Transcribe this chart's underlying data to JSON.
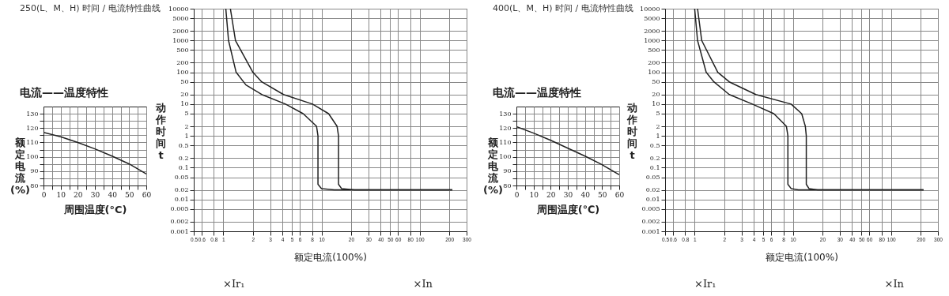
{
  "chart_data": [
    {
      "type": "line",
      "title": "250(L、M、H) 时间 / 电流特性曲线",
      "subtitle": "电流——温度特性",
      "xlabel": "周围温度(°C)",
      "ylabel": "额定电流(%)",
      "x": [
        0,
        10,
        20,
        30,
        40,
        50,
        60
      ],
      "xlim": [
        0,
        60
      ],
      "ylim": [
        80,
        135
      ],
      "xticks": [
        0,
        {
          "value": 5,
          "label": null
        },
        10,
        {
          "value": 15,
          "label": null
        },
        20,
        {
          "value": 25,
          "label": null
        },
        30,
        {
          "value": 35,
          "label": null
        },
        40,
        {
          "value": 45,
          "label": null
        },
        50,
        {
          "value": 55,
          "label": null
        },
        60
      ],
      "yticks": [
        80,
        {
          "value": 85,
          "label": null
        },
        90,
        {
          "value": 95,
          "label": null
        },
        100,
        {
          "value": 105,
          "label": null
        },
        110,
        {
          "value": 115,
          "label": null
        },
        120,
        {
          "value": 125,
          "label": null
        },
        130
      ],
      "grid": true,
      "series": [
        {
          "color": "#222222",
          "values": [
            117,
            114,
            110,
            105.5,
            100.5,
            95,
            88
          ]
        }
      ]
    },
    {
      "type": "line",
      "xlabel": "额定电流(100%)",
      "ylabel": "动作时间t",
      "log": "xy",
      "xlim": [
        0.5,
        300
      ],
      "ylim": [
        0.001,
        10000
      ],
      "xticks": [
        0.5,
        0.6,
        0.8,
        1,
        2,
        3,
        4,
        5,
        6,
        8,
        10,
        20,
        30,
        40,
        50,
        60,
        80,
        100,
        200,
        300
      ],
      "yticks": [
        0.001,
        0.002,
        0.005,
        0.01,
        0.02,
        0.05,
        0.1,
        0.2,
        0.5,
        1,
        2,
        5,
        10,
        20,
        50,
        100,
        200,
        500,
        1000,
        2000,
        5000,
        10000
      ],
      "grid": true,
      "annotations": [
        "×Ir₁",
        "×In"
      ],
      "series": [
        {
          "color": "#222222",
          "x": [
            1.06,
            1.13,
            1.35,
            1.7,
            2.46,
            4.3,
            6.5,
            8.9,
            9.2,
            9.2,
            10,
            13.5,
            215
          ],
          "values": [
            10000,
            1000,
            100,
            40,
            20,
            10,
            5,
            2,
            1,
            0.03,
            0.022,
            0.02,
            0.02
          ]
        },
        {
          "color": "#222222",
          "x": [
            1.18,
            1.33,
            2.0,
            2.46,
            4.1,
            8.1,
            11.8,
            14.4,
            14.9,
            14.9,
            16,
            21.7,
            215
          ],
          "values": [
            10000,
            1000,
            100,
            50,
            20,
            10,
            5,
            2,
            1,
            0.03,
            0.022,
            0.02,
            0.02
          ]
        }
      ]
    },
    {
      "type": "line",
      "title": "400(L、M、H) 时间 / 电流特性曲线",
      "subtitle": "电流——温度特性",
      "xlabel": "周围温度(℃)",
      "ylabel": "额定电流(%)",
      "x": [
        0,
        10,
        20,
        30,
        40,
        50,
        60
      ],
      "xlim": [
        0,
        60
      ],
      "ylim": [
        80,
        135
      ],
      "xticks": [
        0,
        {
          "value": 5,
          "label": null
        },
        10,
        {
          "value": 15,
          "label": null
        },
        20,
        {
          "value": 25,
          "label": null
        },
        30,
        {
          "value": 35,
          "label": null
        },
        40,
        {
          "value": 45,
          "label": null
        },
        50,
        {
          "value": 55,
          "label": null
        },
        60
      ],
      "yticks": [
        80,
        {
          "value": 85,
          "label": null
        },
        90,
        {
          "value": 95,
          "label": null
        },
        100,
        {
          "value": 105,
          "label": null
        },
        110,
        {
          "value": 115,
          "label": null
        },
        120,
        {
          "value": 125,
          "label": null
        },
        130
      ],
      "grid": true,
      "series": [
        {
          "color": "#222222",
          "values": [
            121,
            116.5,
            111.5,
            106,
            100.5,
            94.5,
            87.5
          ]
        }
      ]
    },
    {
      "type": "line",
      "xlabel": "额定电流(100%)",
      "ylabel": "动作时间t",
      "log": "xy",
      "xlim": [
        0.5,
        300
      ],
      "ylim": [
        0.001,
        10000
      ],
      "xticks": [
        0.5,
        0.6,
        0.8,
        1,
        2,
        3,
        4,
        5,
        6,
        8,
        10,
        20,
        30,
        40,
        50,
        60,
        80,
        100,
        200,
        300
      ],
      "yticks": [
        0.001,
        0.002,
        0.005,
        0.01,
        0.02,
        0.05,
        0.1,
        0.2,
        0.5,
        1,
        2,
        5,
        10,
        20,
        50,
        100,
        200,
        500,
        1000,
        2000,
        5000,
        10000
      ],
      "grid": true,
      "annotations": [
        "×Ir₁",
        "×In"
      ],
      "series": [
        {
          "color": "#222222",
          "x": [
            1.0,
            1.07,
            1.31,
            1.57,
            2.25,
            3.87,
            6.4,
            8.6,
            8.9,
            8.9,
            9.6,
            11.4,
            214
          ],
          "values": [
            10000,
            1000,
            100,
            50,
            20,
            10,
            5,
            2,
            1,
            0.03,
            0.022,
            0.02,
            0.02
          ]
        },
        {
          "color": "#222222",
          "x": [
            1.07,
            1.18,
            1.72,
            2.25,
            4.2,
            9.6,
            12.3,
            13.4,
            13.7,
            13.7,
            14.6,
            17.9,
            214
          ],
          "values": [
            10000,
            1000,
            100,
            50,
            20,
            10,
            5,
            2,
            1,
            0.03,
            0.022,
            0.02,
            0.02
          ]
        }
      ]
    }
  ]
}
